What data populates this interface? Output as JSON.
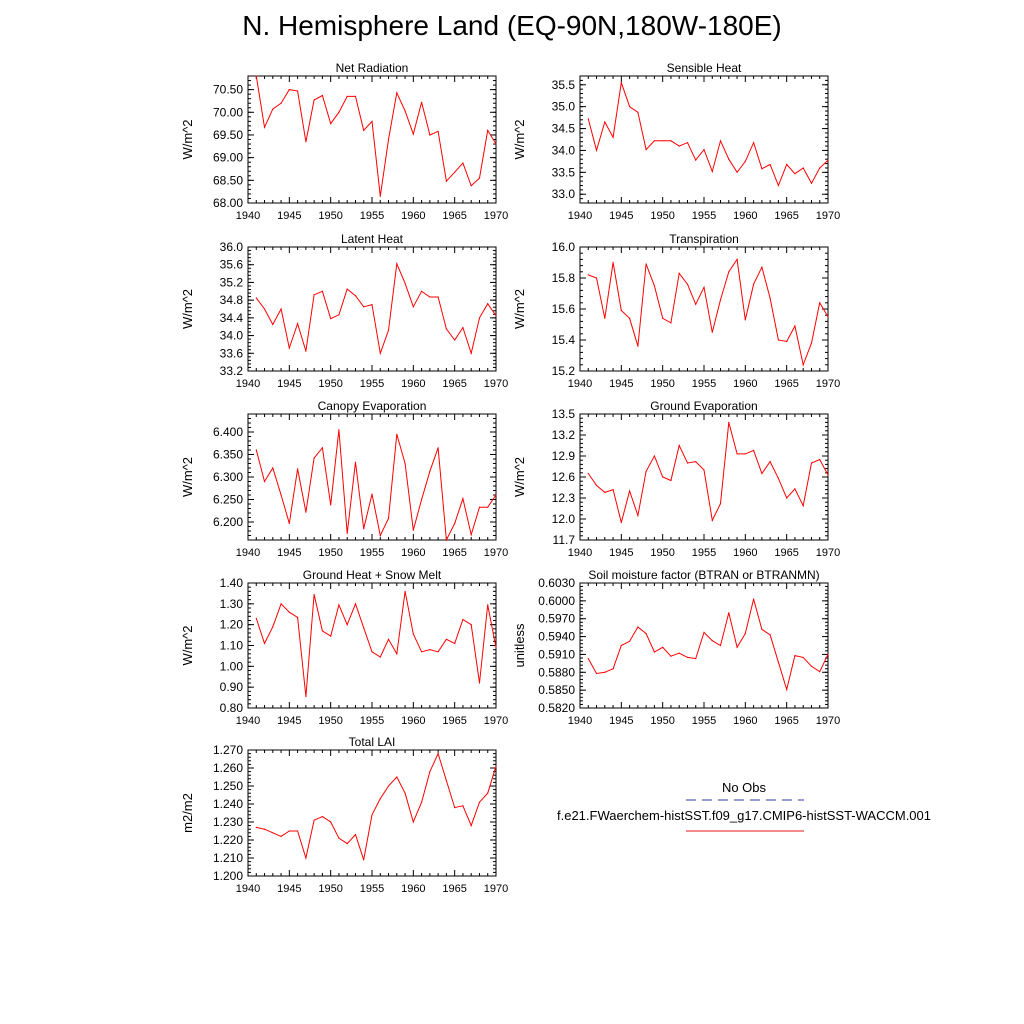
{
  "title": "N. Hemisphere Land (EQ-90N,180W-180E)",
  "legend": {
    "obs_label": "No Obs",
    "obs_color": "#3333aa",
    "model_label": "f.e21.FWaerchem-histSST.f09_g17.CMIP6-histSST-WACCM.001",
    "model_color": "#e8141b"
  },
  "line_color": "#ff0000",
  "chart_data": [
    {
      "type": "line",
      "title": "Net Radiation",
      "ylabel": "W/m^2",
      "x": [
        1941,
        1942,
        1943,
        1944,
        1945,
        1946,
        1947,
        1948,
        1949,
        1950,
        1951,
        1952,
        1953,
        1954,
        1955,
        1956,
        1957,
        1958,
        1959,
        1960,
        1961,
        1962,
        1963,
        1964,
        1965,
        1966,
        1967,
        1968,
        1969,
        1970
      ],
      "y": [
        70.8,
        69.67,
        70.07,
        70.2,
        70.5,
        70.47,
        69.35,
        70.27,
        70.37,
        69.75,
        70.0,
        70.35,
        70.35,
        69.6,
        69.8,
        68.15,
        69.4,
        70.43,
        70.03,
        69.52,
        70.22,
        69.5,
        69.58,
        68.48,
        68.68,
        68.88,
        68.38,
        68.55,
        69.6,
        69.3
      ],
      "xlim": [
        1940,
        1970
      ],
      "ylim": [
        68.0,
        70.8
      ],
      "xticks": [
        "1940",
        "1945",
        "1950",
        "1955",
        "1960",
        "1965",
        "1970"
      ],
      "yticks": [
        "68.00",
        "68.50",
        "69.00",
        "69.50",
        "70.00",
        "70.50"
      ]
    },
    {
      "type": "line",
      "title": "Sensible Heat",
      "ylabel": "W/m^2",
      "x": [
        1941,
        1942,
        1943,
        1944,
        1945,
        1946,
        1947,
        1948,
        1949,
        1950,
        1951,
        1952,
        1953,
        1954,
        1955,
        1956,
        1957,
        1958,
        1959,
        1960,
        1961,
        1962,
        1963,
        1964,
        1965,
        1966,
        1967,
        1968,
        1969,
        1970
      ],
      "y": [
        34.72,
        34.0,
        34.65,
        34.3,
        35.55,
        35.0,
        34.87,
        34.02,
        34.22,
        34.22,
        34.22,
        34.1,
        34.18,
        33.78,
        34.02,
        33.52,
        34.22,
        33.8,
        33.5,
        33.75,
        34.18,
        33.58,
        33.68,
        33.2,
        33.68,
        33.47,
        33.6,
        33.25,
        33.6,
        33.78
      ],
      "xlim": [
        1940,
        1970
      ],
      "ylim": [
        32.8,
        35.7
      ],
      "xticks": [
        "1940",
        "1945",
        "1950",
        "1955",
        "1960",
        "1965",
        "1970"
      ],
      "yticks": [
        "33.0",
        "33.5",
        "34.0",
        "34.5",
        "35.0",
        "35.5"
      ]
    },
    {
      "type": "line",
      "title": "Latent Heat",
      "ylabel": "W/m^2",
      "x": [
        1941,
        1942,
        1943,
        1944,
        1945,
        1946,
        1947,
        1948,
        1949,
        1950,
        1951,
        1952,
        1953,
        1954,
        1955,
        1956,
        1957,
        1958,
        1959,
        1960,
        1961,
        1962,
        1963,
        1964,
        1965,
        1966,
        1967,
        1968,
        1969,
        1970
      ],
      "y": [
        34.85,
        34.6,
        34.25,
        34.6,
        33.72,
        34.27,
        33.65,
        34.92,
        35.0,
        34.38,
        34.47,
        35.05,
        34.9,
        34.65,
        34.7,
        33.6,
        34.12,
        35.62,
        35.18,
        34.65,
        35.0,
        34.87,
        34.87,
        34.15,
        33.9,
        34.18,
        33.6,
        34.4,
        34.72,
        34.45
      ],
      "xlim": [
        1940,
        1970
      ],
      "ylim": [
        33.2,
        36.0
      ],
      "xticks": [
        "1940",
        "1945",
        "1950",
        "1955",
        "1960",
        "1965",
        "1970"
      ],
      "yticks": [
        "33.2",
        "33.6",
        "34.0",
        "34.4",
        "34.8",
        "35.2",
        "35.6",
        "36.0"
      ]
    },
    {
      "type": "line",
      "title": "Transpiration",
      "ylabel": "W/m^2",
      "x": [
        1941,
        1942,
        1943,
        1944,
        1945,
        1946,
        1947,
        1948,
        1949,
        1950,
        1951,
        1952,
        1953,
        1954,
        1955,
        1956,
        1957,
        1958,
        1959,
        1960,
        1961,
        1962,
        1963,
        1964,
        1965,
        1966,
        1967,
        1968,
        1969,
        1970
      ],
      "y": [
        15.82,
        15.8,
        15.54,
        15.9,
        15.59,
        15.54,
        15.36,
        15.89,
        15.75,
        15.54,
        15.51,
        15.83,
        15.76,
        15.63,
        15.74,
        15.45,
        15.66,
        15.84,
        15.92,
        15.53,
        15.76,
        15.87,
        15.67,
        15.4,
        15.39,
        15.49,
        15.24,
        15.38,
        15.64,
        15.55
      ],
      "xlim": [
        1940,
        1970
      ],
      "ylim": [
        15.2,
        16.0
      ],
      "xticks": [
        "1940",
        "1945",
        "1950",
        "1955",
        "1960",
        "1965",
        "1970"
      ],
      "yticks": [
        "15.2",
        "15.4",
        "15.6",
        "15.8",
        "16.0"
      ]
    },
    {
      "type": "line",
      "title": "Canopy Evaporation",
      "ylabel": "W/m^2",
      "x": [
        1941,
        1942,
        1943,
        1944,
        1945,
        1946,
        1947,
        1948,
        1949,
        1950,
        1951,
        1952,
        1953,
        1954,
        1955,
        1956,
        1957,
        1958,
        1959,
        1960,
        1961,
        1962,
        1963,
        1964,
        1965,
        1966,
        1967,
        1968,
        1969,
        1970
      ],
      "y": [
        6.36,
        6.29,
        6.32,
        6.26,
        6.197,
        6.318,
        6.222,
        6.342,
        6.365,
        6.238,
        6.405,
        6.175,
        6.333,
        6.185,
        6.262,
        6.17,
        6.208,
        6.395,
        6.33,
        6.182,
        6.25,
        6.313,
        6.365,
        6.16,
        6.197,
        6.252,
        6.172,
        6.233,
        6.233,
        6.26
      ],
      "xlim": [
        1940,
        1970
      ],
      "ylim": [
        6.16,
        6.44
      ],
      "xticks": [
        "1940",
        "1945",
        "1950",
        "1955",
        "1960",
        "1965",
        "1970"
      ],
      "yticks": [
        "6.200",
        "6.250",
        "6.300",
        "6.350",
        "6.400"
      ]
    },
    {
      "type": "line",
      "title": "Ground Evaporation",
      "ylabel": "W/m^2",
      "x": [
        1941,
        1942,
        1943,
        1944,
        1945,
        1946,
        1947,
        1948,
        1949,
        1950,
        1951,
        1952,
        1953,
        1954,
        1955,
        1956,
        1957,
        1958,
        1959,
        1960,
        1961,
        1962,
        1963,
        1964,
        1965,
        1966,
        1967,
        1968,
        1969,
        1970
      ],
      "y": [
        12.65,
        12.48,
        12.38,
        12.42,
        11.95,
        12.4,
        12.05,
        12.68,
        12.9,
        12.6,
        12.55,
        13.05,
        12.8,
        12.82,
        12.7,
        11.98,
        12.22,
        13.38,
        12.93,
        12.93,
        12.98,
        12.65,
        12.82,
        12.58,
        12.3,
        12.43,
        12.19,
        12.8,
        12.85,
        12.63
      ],
      "xlim": [
        1940,
        1970
      ],
      "ylim": [
        11.7,
        13.5
      ],
      "xticks": [
        "1940",
        "1945",
        "1950",
        "1955",
        "1960",
        "1965",
        "1970"
      ],
      "yticks": [
        "11.7",
        "12.0",
        "12.3",
        "12.6",
        "12.9",
        "13.2",
        "13.5"
      ]
    },
    {
      "type": "line",
      "title": "Ground Heat + Snow Melt",
      "ylabel": "W/m^2",
      "x": [
        1941,
        1942,
        1943,
        1944,
        1945,
        1946,
        1947,
        1948,
        1949,
        1950,
        1951,
        1952,
        1953,
        1954,
        1955,
        1956,
        1957,
        1958,
        1959,
        1960,
        1961,
        1962,
        1963,
        1964,
        1965,
        1966,
        1967,
        1968,
        1969,
        1970
      ],
      "y": [
        1.23,
        1.11,
        1.19,
        1.3,
        1.26,
        1.235,
        0.855,
        1.345,
        1.17,
        1.145,
        1.295,
        1.2,
        1.3,
        1.185,
        1.07,
        1.045,
        1.13,
        1.06,
        1.36,
        1.155,
        1.07,
        1.08,
        1.07,
        1.13,
        1.11,
        1.225,
        1.2,
        0.92,
        1.295,
        1.09
      ],
      "xlim": [
        1940,
        1970
      ],
      "ylim": [
        0.8,
        1.4
      ],
      "xticks": [
        "1940",
        "1945",
        "1950",
        "1955",
        "1960",
        "1965",
        "1970"
      ],
      "yticks": [
        "0.80",
        "0.90",
        "1.00",
        "1.10",
        "1.20",
        "1.30",
        "1.40"
      ]
    },
    {
      "type": "line",
      "title": "Soil moisture factor (BTRAN or BTRANMN)",
      "ylabel": "unitless",
      "x": [
        1941,
        1942,
        1943,
        1944,
        1945,
        1946,
        1947,
        1948,
        1949,
        1950,
        1951,
        1952,
        1953,
        1954,
        1955,
        1956,
        1957,
        1958,
        1959,
        1960,
        1961,
        1962,
        1963,
        1964,
        1965,
        1966,
        1967,
        1968,
        1969,
        1970
      ],
      "y": [
        0.5903,
        0.5878,
        0.588,
        0.5886,
        0.5925,
        0.5932,
        0.5956,
        0.5945,
        0.5914,
        0.5922,
        0.5907,
        0.5912,
        0.5905,
        0.5903,
        0.5947,
        0.5933,
        0.5925,
        0.598,
        0.5922,
        0.5945,
        0.6003,
        0.5952,
        0.5943,
        0.5897,
        0.5851,
        0.5908,
        0.5905,
        0.589,
        0.5881,
        0.591
      ],
      "xlim": [
        1940,
        1970
      ],
      "ylim": [
        0.582,
        0.603
      ],
      "xticks": [
        "1940",
        "1945",
        "1950",
        "1955",
        "1960",
        "1965",
        "1970"
      ],
      "yticks": [
        "0.5820",
        "0.5850",
        "0.5880",
        "0.5910",
        "0.5940",
        "0.5970",
        "0.6000",
        "0.6030"
      ]
    },
    {
      "type": "line",
      "title": "Total LAI",
      "ylabel": "m2/m2",
      "x": [
        1941,
        1942,
        1943,
        1944,
        1945,
        1946,
        1947,
        1948,
        1949,
        1950,
        1951,
        1952,
        1953,
        1954,
        1955,
        1956,
        1957,
        1958,
        1959,
        1960,
        1961,
        1962,
        1963,
        1964,
        1965,
        1966,
        1967,
        1968,
        1969,
        1970
      ],
      "y": [
        1.227,
        1.226,
        1.224,
        1.222,
        1.225,
        1.225,
        1.21,
        1.231,
        1.233,
        1.23,
        1.221,
        1.218,
        1.223,
        1.209,
        1.234,
        1.243,
        1.25,
        1.255,
        1.246,
        1.23,
        1.241,
        1.258,
        1.268,
        1.253,
        1.238,
        1.239,
        1.228,
        1.241,
        1.246,
        1.261
      ],
      "xlim": [
        1940,
        1970
      ],
      "ylim": [
        1.2,
        1.27
      ],
      "xticks": [
        "1940",
        "1945",
        "1950",
        "1955",
        "1960",
        "1965",
        "1970"
      ],
      "yticks": [
        "1.200",
        "1.210",
        "1.220",
        "1.230",
        "1.240",
        "1.250",
        "1.260",
        "1.270"
      ]
    }
  ]
}
